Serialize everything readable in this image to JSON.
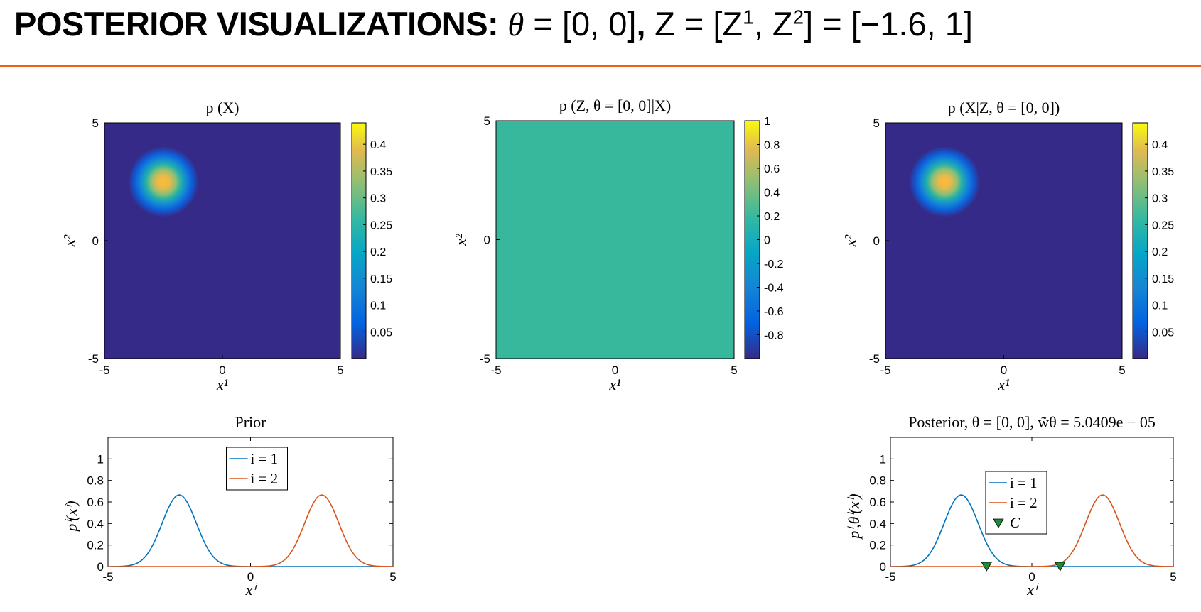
{
  "header": {
    "title_bold": "POSTERIOR VISUALIZATIONS:",
    "title_theta": "θ",
    "title_eq1": " = [0, 0]",
    "title_comma": ",",
    "title_Z": " Z",
    "title_eq2": " = [Z",
    "title_sup1": "1",
    "title_sep": ",  Z",
    "title_sup2": "2",
    "title_eq3": "] = [−1.6,  1]",
    "rule_color": "#ee6012"
  },
  "chart_data": [
    {
      "id": "pX",
      "type": "heatmap",
      "title": "p (X)",
      "xlabel": "x¹",
      "ylabel": "x²",
      "xlim": [
        -5,
        5
      ],
      "ylim": [
        -5,
        5
      ],
      "xticks": [
        "-5",
        "0",
        "5"
      ],
      "yticks": [
        "-5",
        "0",
        "5"
      ],
      "peak": {
        "x": -2.5,
        "y": 2.5,
        "value": 0.44,
        "sigma": 0.6
      },
      "colorbar": {
        "min": 0,
        "max": 0.44,
        "ticks": [
          "0.05",
          "0.1",
          "0.15",
          "0.2",
          "0.25",
          "0.3",
          "0.35",
          "0.4"
        ],
        "tick_values": [
          0.05,
          0.1,
          0.15,
          0.2,
          0.25,
          0.3,
          0.35,
          0.4
        ]
      }
    },
    {
      "id": "pZ",
      "type": "heatmap",
      "title": "p (Z, θ = [0,  0]|X)",
      "xlabel": "x¹",
      "ylabel": "x²",
      "xlim": [
        -5,
        5
      ],
      "ylim": [
        -5,
        5
      ],
      "xticks": [
        "-5",
        "0",
        "5"
      ],
      "yticks": [
        "-5",
        "0",
        "5"
      ],
      "constant_value": 0,
      "colorbar": {
        "min": -1,
        "max": 1,
        "ticks": [
          "1",
          "0.8",
          "0.6",
          "0.4",
          "0.2",
          "0",
          "-0.2",
          "-0.4",
          "-0.6",
          "-0.8"
        ],
        "tick_values": [
          1,
          0.8,
          0.6,
          0.4,
          0.2,
          0,
          -0.2,
          -0.4,
          -0.6,
          -0.8
        ]
      }
    },
    {
      "id": "pXZ",
      "type": "heatmap",
      "title": "p (X|Z, θ = [0,  0])",
      "xlabel": "x¹",
      "ylabel": "x²",
      "xlim": [
        -5,
        5
      ],
      "ylim": [
        -5,
        5
      ],
      "xticks": [
        "-5",
        "0",
        "5"
      ],
      "yticks": [
        "-5",
        "0",
        "5"
      ],
      "peak": {
        "x": -2.5,
        "y": 2.5,
        "value": 0.44,
        "sigma": 0.6
      },
      "colorbar": {
        "min": 0,
        "max": 0.44,
        "ticks": [
          "0.05",
          "0.1",
          "0.15",
          "0.2",
          "0.25",
          "0.3",
          "0.35",
          "0.4"
        ],
        "tick_values": [
          0.05,
          0.1,
          0.15,
          0.2,
          0.25,
          0.3,
          0.35,
          0.4
        ]
      }
    },
    {
      "id": "prior",
      "type": "line",
      "title": "Prior",
      "xlabel": "xⁱ",
      "ylabel": "pⁱ(xⁱ)",
      "xlim": [
        -5,
        5
      ],
      "ylim": [
        0,
        1.2
      ],
      "xticks": [
        "-5",
        "0",
        "5"
      ],
      "yticks": [
        "0",
        "0.2",
        "0.4",
        "0.6",
        "0.8",
        "1"
      ],
      "series": [
        {
          "name": "i = 1",
          "color": "#0072bd",
          "mean": -2.5,
          "sigma": 0.6,
          "peak": 0.665
        },
        {
          "name": "i = 2",
          "color": "#d95319",
          "mean": 2.5,
          "sigma": 0.6,
          "peak": 0.665
        }
      ],
      "legend": "top-center"
    },
    {
      "id": "posterior",
      "type": "line",
      "title": "Posterior, θ = [0,  0], w̃θ = 5.0409e − 05",
      "xlabel": "xⁱ",
      "ylabel": "pⁱ,θⁱ(xⁱ)",
      "xlim": [
        -5,
        5
      ],
      "ylim": [
        0,
        1.2
      ],
      "xticks": [
        "-5",
        "0",
        "5"
      ],
      "yticks": [
        "0",
        "0.2",
        "0.4",
        "0.6",
        "0.8",
        "1"
      ],
      "series": [
        {
          "name": "i = 1",
          "color": "#0072bd",
          "mean": -2.5,
          "sigma": 0.6,
          "peak": 0.665
        },
        {
          "name": "i = 2",
          "color": "#d95319",
          "mean": 2.5,
          "sigma": 0.6,
          "peak": 0.665
        }
      ],
      "markers": {
        "name": "C",
        "color": "#1f8a3b",
        "x": [
          -1.6,
          1
        ],
        "y": [
          0,
          0
        ]
      },
      "legend": "top-center"
    }
  ]
}
